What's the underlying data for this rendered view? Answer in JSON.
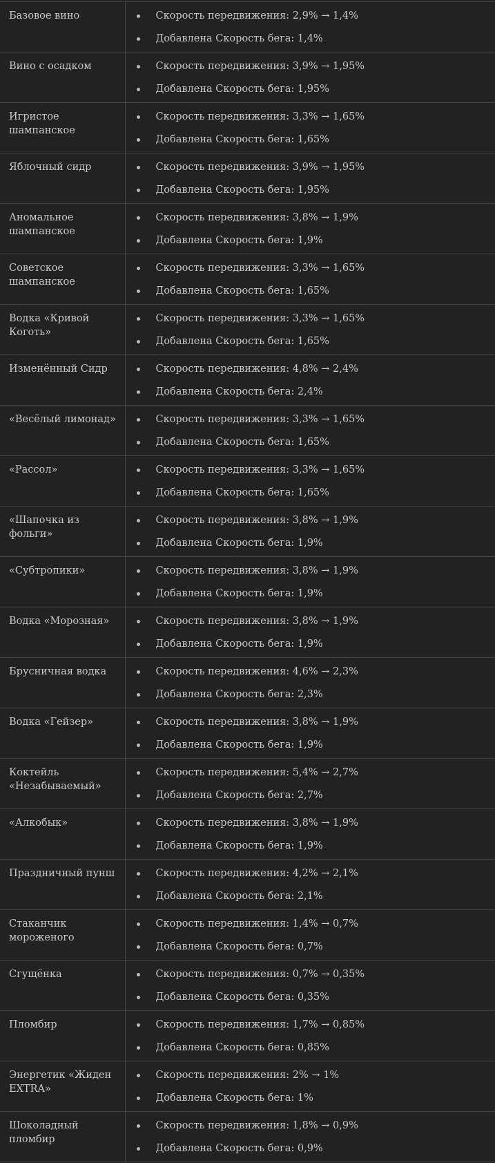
{
  "rows": [
    {
      "name": "Базовое вино",
      "speed": "Скорость передвижения: 2,9% → 1,4%",
      "run": "Добавлена Скорость бега: 1,4%"
    },
    {
      "name": "Вино с осадком",
      "speed": "Скорость передвижения: 3,9% → 1,95%",
      "run": "Добавлена Скорость бега: 1,95%"
    },
    {
      "name": "Игристое шампанское",
      "speed": "Скорость передвижения: 3,3% → 1,65%",
      "run": "Добавлена Скорость бега: 1,65%"
    },
    {
      "name": "Яблочный сидр",
      "speed": "Скорость передвижения: 3,9% → 1,95%",
      "run": "Добавлена Скорость бега: 1,95%"
    },
    {
      "name": "Аномальное шампанское",
      "speed": "Скорость передвижения: 3,8% → 1,9%",
      "run": "Добавлена Скорость бега: 1,9%"
    },
    {
      "name": "Советское шампанское",
      "speed": "Скорость передвижения: 3,3% → 1,65%",
      "run": "Добавлена Скорость бега: 1,65%"
    },
    {
      "name": "Водка «Кривой Коготь»",
      "speed": "Скорость передвижения: 3,3% → 1,65%",
      "run": "Добавлена Скорость бега: 1,65%"
    },
    {
      "name": "Изменённый Сидр",
      "speed": "Скорость передвижения: 4,8% → 2,4%",
      "run": "Добавлена Скорость бега: 2,4%"
    },
    {
      "name": "«Весёлый лимонад»",
      "speed": "Скорость передвижения: 3,3% → 1,65%",
      "run": "Добавлена Скорость бега: 1,65%"
    },
    {
      "name": "«Рассол»",
      "speed": "Скорость передвижения: 3,3% → 1,65%",
      "run": "Добавлена Скорость бега: 1,65%"
    },
    {
      "name": "«Шапочка из фольги»",
      "speed": "Скорость передвижения: 3,8% → 1,9%",
      "run": "Добавлена Скорость бега: 1,9%"
    },
    {
      "name": "«Субтропики»",
      "speed": "Скорость передвижения: 3,8% → 1,9%",
      "run": "Добавлена Скорость бега: 1,9%"
    },
    {
      "name": "Водка «Морозная»",
      "speed": "Скорость передвижения: 3,8% → 1,9%",
      "run": "Добавлена Скорость бега: 1,9%"
    },
    {
      "name": "Брусничная водка",
      "speed": "Скорость передвижения: 4,6% → 2,3%",
      "run": "Добавлена Скорость бега: 2,3%"
    },
    {
      "name": "Водка «Гейзер»",
      "speed": "Скорость передвижения: 3,8% → 1,9%",
      "run": "Добавлена Скорость бега: 1,9%"
    },
    {
      "name": "Коктейль «Незабываемый»",
      "speed": "Скорость передвижения: 5,4% → 2,7%",
      "run": "Добавлена Скорость бега: 2,7%"
    },
    {
      "name": "«Алкобык»",
      "speed": "Скорость передвижения: 3,8% → 1,9%",
      "run": "Добавлена Скорость бега: 1,9%"
    },
    {
      "name": "Праздничный пунш",
      "speed": "Скорость передвижения: 4,2% → 2,1%",
      "run": "Добавлена Скорость бега: 2,1%"
    },
    {
      "name": "Стаканчик мороженого",
      "speed": "Скорость передвижения: 1,4% → 0,7%",
      "run": "Добавлена Скорость бега: 0,7%"
    },
    {
      "name": "Сгущёнка",
      "speed": "Скорость передвижения: 0,7% → 0,35%",
      "run": "Добавлена Скорость бега: 0,35%"
    },
    {
      "name": "Пломбир",
      "speed": "Скорость передвижения: 1,7% → 0,85%",
      "run": "Добавлена Скорость бега: 0,85%"
    },
    {
      "name": "Энергетик «Жиден EXTRA»",
      "speed": "Скорость передвижения: 2% → 1%",
      "run": "Добавлена Скорость бега: 1%"
    },
    {
      "name": "Шоколадный пломбир",
      "speed": "Скорость передвижения: 1,8% → 0,9%",
      "run": "Добавлена Скорость бега: 0,9%"
    }
  ]
}
